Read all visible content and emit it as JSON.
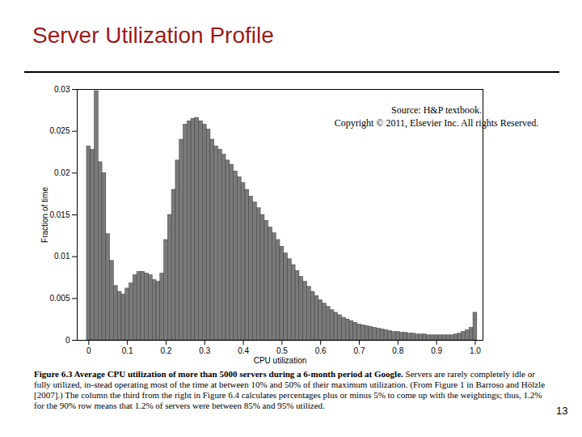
{
  "chart_data": {
    "type": "histogram",
    "title": "Server Utilization Profile",
    "xlabel": "CPU utilization",
    "ylabel": "Fraction of time",
    "annotations": [
      "Source: H&P textbook.",
      "Copyright © 2011, Elsevier Inc. All rights Reserved."
    ],
    "bins": [
      -0.005,
      0.005,
      0.015,
      0.025,
      0.035,
      0.045,
      0.055,
      0.065,
      0.075,
      0.085,
      0.095,
      0.105,
      0.115,
      0.125,
      0.135,
      0.145,
      0.155,
      0.165,
      0.175,
      0.185,
      0.195,
      0.205,
      0.215,
      0.225,
      0.235,
      0.245,
      0.255,
      0.265,
      0.275,
      0.285,
      0.295,
      0.305,
      0.315,
      0.325,
      0.335,
      0.345,
      0.355,
      0.365,
      0.375,
      0.385,
      0.395,
      0.405,
      0.415,
      0.425,
      0.435,
      0.445,
      0.455,
      0.465,
      0.475,
      0.485,
      0.495,
      0.505,
      0.515,
      0.525,
      0.535,
      0.545,
      0.555,
      0.565,
      0.575,
      0.585,
      0.595,
      0.605,
      0.615,
      0.625,
      0.635,
      0.645,
      0.655,
      0.665,
      0.675,
      0.685,
      0.695,
      0.705,
      0.715,
      0.725,
      0.735,
      0.745,
      0.755,
      0.765,
      0.775,
      0.785,
      0.795,
      0.805,
      0.815,
      0.825,
      0.835,
      0.845,
      0.855,
      0.865,
      0.875,
      0.885,
      0.895,
      0.905,
      0.915,
      0.925,
      0.935,
      0.945,
      0.955,
      0.965,
      0.975,
      0.985,
      0.995,
      1.005
    ],
    "counts": [
      0.0232,
      0.0228,
      0.0298,
      0.0213,
      0.02,
      0.0127,
      0.0095,
      0.0065,
      0.0058,
      0.0055,
      0.0062,
      0.0068,
      0.0078,
      0.0082,
      0.0082,
      0.008,
      0.0078,
      0.0072,
      0.007,
      0.008,
      0.012,
      0.015,
      0.018,
      0.0215,
      0.024,
      0.0258,
      0.0262,
      0.0265,
      0.0266,
      0.0262,
      0.0258,
      0.0252,
      0.024,
      0.0232,
      0.0228,
      0.0222,
      0.0215,
      0.021,
      0.0202,
      0.0195,
      0.0188,
      0.018,
      0.0172,
      0.0165,
      0.0158,
      0.015,
      0.0143,
      0.0135,
      0.0128,
      0.012,
      0.0112,
      0.0104,
      0.0097,
      0.009,
      0.0083,
      0.0076,
      0.007,
      0.0064,
      0.0058,
      0.0053,
      0.0048,
      0.0044,
      0.004,
      0.0036,
      0.0033,
      0.003,
      0.0027,
      0.0025,
      0.0023,
      0.0021,
      0.0019,
      0.0018,
      0.0017,
      0.0016,
      0.0015,
      0.0014,
      0.0013,
      0.0012,
      0.0011,
      0.001,
      0.001,
      0.0009,
      0.0009,
      0.0008,
      0.0008,
      0.0007,
      0.0007,
      0.0007,
      0.0006,
      0.0006,
      0.0006,
      0.0006,
      0.0006,
      0.0006,
      0.0006,
      0.0007,
      0.0008,
      0.001,
      0.0012,
      0.0015,
      0.0033
    ],
    "color": "#7a7a7a",
    "xlim": [
      -0.03,
      1.02
    ],
    "ylim": [
      0,
      0.03
    ],
    "xticks": [
      0,
      0.1,
      0.2,
      0.3,
      0.4,
      0.5,
      0.6,
      0.7,
      0.8,
      0.9,
      {
        "value": 1,
        "label": "1.0"
      }
    ],
    "yticks": [
      0,
      0.005,
      0.01,
      0.015,
      0.02,
      0.025,
      0.03
    ],
    "grid": false
  },
  "slide": {
    "caption_heading": "Figure 6.3 Average CPU utilization of more than 5000 servers during a 6-month period at Google.",
    "caption": "Servers are rarely completely idle or fully utilized, in-stead operating most of the time at between 10% and 50% of their maximum utilization. (From Figure 1 in Barroso and Hölzle [2007].) The column the third from the right in Figure 6.4 calculates percentages plus or minus 5% to come up with the weightings; thus, 1.2% for the 90% row means that 1.2% of servers were between 85% and 95% utilized.",
    "page": "13"
  }
}
